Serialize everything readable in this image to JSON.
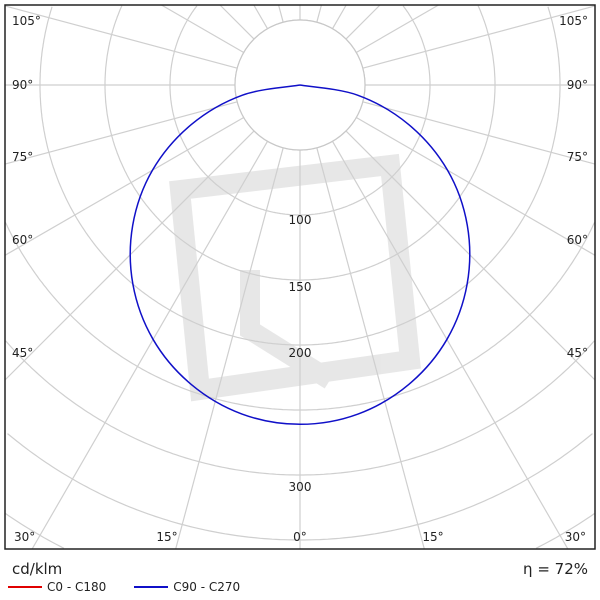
{
  "chart_data": {
    "type": "polar",
    "title": "",
    "unit": "cd/klm",
    "efficiency": "η = 72%",
    "radial_ticks": [
      100,
      150,
      200,
      300
    ],
    "radial_rings": [
      50,
      100,
      150,
      200,
      250,
      300,
      350,
      400,
      450
    ],
    "angle_labels": [
      "105°",
      "90°",
      "75°",
      "60°",
      "45°",
      "30°",
      "15°",
      "0°"
    ],
    "angle_step_deg": 15,
    "legend_position": "bottom-left",
    "series": [
      {
        "name": "C0 - C180",
        "color": "#e00000",
        "visible_curve": false,
        "angles": [],
        "values": []
      },
      {
        "name": "C90 - C270",
        "color": "#1010c8",
        "visible_curve": true,
        "angles": [
          0,
          10,
          20,
          30,
          40,
          50,
          60,
          70,
          80,
          90
        ],
        "values": [
          261,
          257,
          245,
          226,
          200,
          168,
          131,
          89,
          45,
          0
        ]
      }
    ]
  }
}
